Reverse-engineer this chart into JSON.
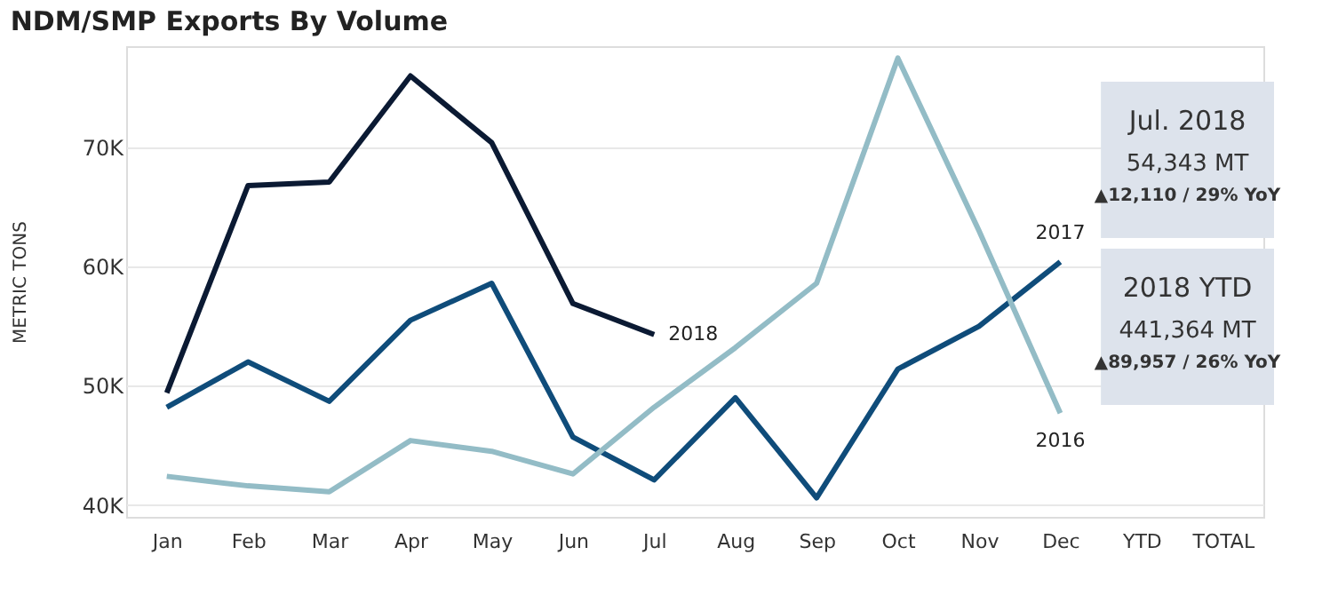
{
  "chart_data": {
    "type": "line",
    "title": "NDM/SMP Exports By Volume",
    "ylabel": "METRIC TONS",
    "categories": [
      "Jan",
      "Feb",
      "Mar",
      "Apr",
      "May",
      "Jun",
      "Jul",
      "Aug",
      "Sep",
      "Oct",
      "Nov",
      "Dec",
      "YTD",
      "TOTAL"
    ],
    "series": [
      {
        "name": "2018",
        "color": "#0b1a33",
        "values": [
          49.4,
          66.8,
          67.1,
          76.0,
          70.4,
          56.9,
          54.3,
          null,
          null,
          null,
          null,
          null,
          null,
          null
        ]
      },
      {
        "name": "2017",
        "color": "#0f4c7a",
        "values": [
          48.2,
          52.0,
          48.7,
          55.5,
          58.6,
          45.7,
          42.1,
          49.0,
          40.6,
          51.4,
          55.0,
          60.4,
          null,
          null
        ]
      },
      {
        "name": "2016",
        "color": "#93bcc6",
        "values": [
          42.4,
          41.6,
          41.1,
          45.4,
          44.5,
          42.6,
          48.2,
          53.2,
          58.6,
          77.5,
          63.0,
          47.7,
          null,
          null
        ]
      }
    ],
    "ylim": [
      39,
      78.5
    ],
    "yticks": [
      {
        "value": 40,
        "label": "40K"
      },
      {
        "value": 50,
        "label": "50K"
      },
      {
        "value": 60,
        "label": "60K"
      },
      {
        "value": 70,
        "label": "70K"
      }
    ],
    "grid": "y",
    "marker": "none",
    "line_style": "solid",
    "annotations": [
      "Jul. 2018",
      "54,343 MT",
      "▲12,110 / 29% YoY",
      "2018 YTD",
      "441,364 MT",
      "▲89,957 / 26% YoY"
    ]
  }
}
